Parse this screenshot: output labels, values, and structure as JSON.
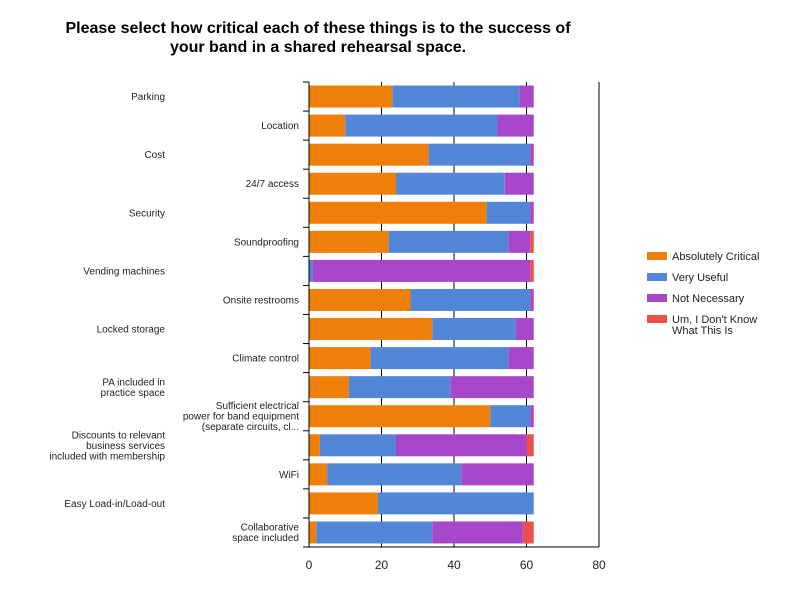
{
  "chart_data": {
    "type": "bar",
    "orientation": "horizontal",
    "stacked": true,
    "title": [
      "Please select how critical each of these things is to the success of",
      "your band in a shared rehearsal space."
    ],
    "categories": [
      [
        "Parking"
      ],
      [
        "Location"
      ],
      [
        "Cost"
      ],
      [
        "24/7 access"
      ],
      [
        "Security"
      ],
      [
        "Soundproofing"
      ],
      [
        "Vending machines"
      ],
      [
        "Onsite restrooms"
      ],
      [
        "Locked storage"
      ],
      [
        "Climate control"
      ],
      [
        "PA included in",
        "practice space"
      ],
      [
        "Sufficient electrical",
        "power for band equipment",
        "(separate circuits, cl..."
      ],
      [
        "Discounts to relevant",
        "business services",
        "included with membership"
      ],
      [
        "WiFi"
      ],
      [
        "Easy Load-in/Load-out"
      ],
      [
        "Collaborative",
        "space included"
      ]
    ],
    "series": [
      {
        "name": "Absolutely Critical",
        "color": "#f07f09",
        "values": [
          23,
          10,
          33,
          24,
          49,
          22,
          0,
          28,
          34,
          17,
          11,
          50,
          3,
          5,
          19,
          2
        ]
      },
      {
        "name": "Very Useful",
        "color": "#5287d8",
        "values": [
          35,
          42,
          28,
          30,
          12,
          33,
          1,
          33,
          23,
          38,
          28,
          11,
          21,
          37,
          43,
          32
        ]
      },
      {
        "name": "Not Necessary",
        "color": "#a747c9",
        "values": [
          4,
          10,
          1,
          8,
          1,
          6,
          60,
          1,
          5,
          7,
          23,
          1,
          36,
          20,
          0,
          25
        ]
      },
      {
        "name": [
          "Um, I Don't Know",
          "What This Is"
        ],
        "color": "#e8524a",
        "values": [
          0,
          0,
          0,
          0,
          0,
          1,
          1,
          0,
          0,
          0,
          0,
          0,
          2,
          0,
          0,
          3
        ]
      }
    ],
    "xlim": [
      0,
      80
    ],
    "xticks": [
      "0",
      "20",
      "40",
      "60",
      "80"
    ],
    "grid": "vertical",
    "legend": "right"
  }
}
